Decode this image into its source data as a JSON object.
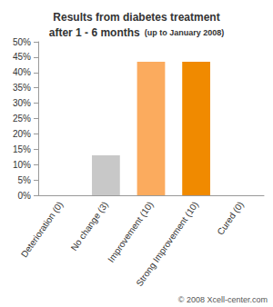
{
  "chart_data": {
    "type": "bar",
    "title": "Results from diabetes treatment",
    "subtitle": "after 1 - 6 months",
    "annotations": [
      "(up to January 2008)",
      "© 2008 Xcell-center.com"
    ],
    "categories": [
      "Deterioration (0)",
      "No change (3)",
      "Improvement (10)",
      "Strong Improvement (10)",
      "Cured (0)"
    ],
    "values": [
      0,
      13,
      43.5,
      43.5,
      0
    ],
    "colors": [
      "#c8c8c8",
      "#c8c8c8",
      "#fbab5e",
      "#f08a00",
      "#f08a00"
    ],
    "ylim": [
      0,
      50
    ],
    "yticks": [
      {
        "value": 0,
        "label": "0%"
      },
      {
        "value": 5,
        "label": "5%"
      },
      {
        "value": 10,
        "label": "10%"
      },
      {
        "value": 15,
        "label": "15%"
      },
      {
        "value": 20,
        "label": "20%"
      },
      {
        "value": 25,
        "label": "25%"
      },
      {
        "value": 30,
        "label": "30%"
      },
      {
        "value": 35,
        "label": "35%"
      },
      {
        "value": 40,
        "label": "40%"
      },
      {
        "value": 45,
        "label": "45%"
      },
      {
        "value": 50,
        "label": "50%"
      }
    ],
    "grid": false
  }
}
